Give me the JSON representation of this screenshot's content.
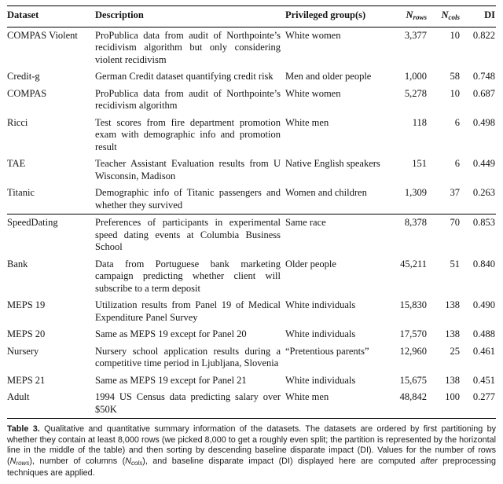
{
  "table": {
    "headers": {
      "dataset": "Dataset",
      "description": "Description",
      "privileged": "Privileged group(s)",
      "n": "N",
      "rows_sub": "rows",
      "cols_sub": "cols",
      "di": "DI"
    },
    "groups": [
      {
        "rows": [
          {
            "dataset": "COMPAS Violent",
            "description": "ProPublica data from audit of Northpointe’s recidivism algorithm but only considering violent recidivism",
            "privileged": "White women",
            "nrows": "3,377",
            "ncols": "10",
            "di": "0.822"
          },
          {
            "dataset": "Credit-g",
            "description": "German Credit dataset quantifying credit risk",
            "privileged": "Men and older people",
            "nrows": "1,000",
            "ncols": "58",
            "di": "0.748"
          },
          {
            "dataset": "COMPAS",
            "description": "ProPublica data from audit of Northpointe’s recidivism algorithm",
            "privileged": "White women",
            "nrows": "5,278",
            "ncols": "10",
            "di": "0.687"
          },
          {
            "dataset": "Ricci",
            "description": "Test scores from fire department promotion exam with demographic info and promotion result",
            "privileged": "White men",
            "nrows": "118",
            "ncols": "6",
            "di": "0.498"
          },
          {
            "dataset": "TAE",
            "description": "Teacher Assistant Evaluation results from U Wisconsin, Madison",
            "privileged": "Native English speakers",
            "nrows": "151",
            "ncols": "6",
            "di": "0.449"
          },
          {
            "dataset": "Titanic",
            "description": "Demographic info of Titanic passengers and whether they survived",
            "privileged": "Women and children",
            "nrows": "1,309",
            "ncols": "37",
            "di": "0.263"
          }
        ]
      },
      {
        "rows": [
          {
            "dataset": "SpeedDating",
            "description": "Preferences of participants in experimental speed dating events at Columbia Business School",
            "privileged": "Same race",
            "nrows": "8,378",
            "ncols": "70",
            "di": "0.853"
          },
          {
            "dataset": "Bank",
            "description": "Data from Portuguese bank marketing campaign predicting whether client will subscribe to a term deposit",
            "privileged": "Older people",
            "nrows": "45,211",
            "ncols": "51",
            "di": "0.840"
          },
          {
            "dataset": "MEPS 19",
            "description": "Utilization results from Panel 19 of Medical Expenditure Panel Survey",
            "privileged": "White individuals",
            "nrows": "15,830",
            "ncols": "138",
            "di": "0.490"
          },
          {
            "dataset": "MEPS 20",
            "description": "Same as MEPS 19 except for Panel 20",
            "privileged": "White individuals",
            "nrows": "17,570",
            "ncols": "138",
            "di": "0.488"
          },
          {
            "dataset": "Nursery",
            "description": "Nursery school application results during a competitive time period in Ljubljana, Slovenia",
            "privileged": "“Pretentious parents”",
            "nrows": "12,960",
            "ncols": "25",
            "di": "0.461"
          },
          {
            "dataset": "MEPS 21",
            "description": "Same as MEPS 19 except for Panel 21",
            "privileged": "White individuals",
            "nrows": "15,675",
            "ncols": "138",
            "di": "0.451"
          },
          {
            "dataset": "Adult",
            "description": "1994 US Census data predicting salary over $50K",
            "privileged": "White men",
            "nrows": "48,842",
            "ncols": "100",
            "di": "0.277"
          }
        ]
      }
    ]
  },
  "caption": {
    "segments": [
      {
        "text": "Table 3.",
        "style": "bold"
      },
      {
        "text": " Qualitative and quantitative summary information of the datasets. The datasets are ordered by first partitioning by whether they contain at least 8,000 rows (we picked 8,000 to get a roughly even split; the partition is represented by the horizontal line in the middle of the table) and then sorting by descending baseline disparate impact (DI). Values for the number of rows (",
        "style": "normal"
      },
      {
        "text": "N",
        "style": "italic"
      },
      {
        "text": "rows",
        "style": "italic-sub"
      },
      {
        "text": "), number of columns (",
        "style": "normal"
      },
      {
        "text": "N",
        "style": "italic"
      },
      {
        "text": "cols",
        "style": "italic-sub"
      },
      {
        "text": "), and baseline disparate impact (DI) displayed here are computed ",
        "style": "normal"
      },
      {
        "text": "after",
        "style": "italic"
      },
      {
        "text": " preprocessing techniques are applied.",
        "style": "normal"
      }
    ]
  }
}
